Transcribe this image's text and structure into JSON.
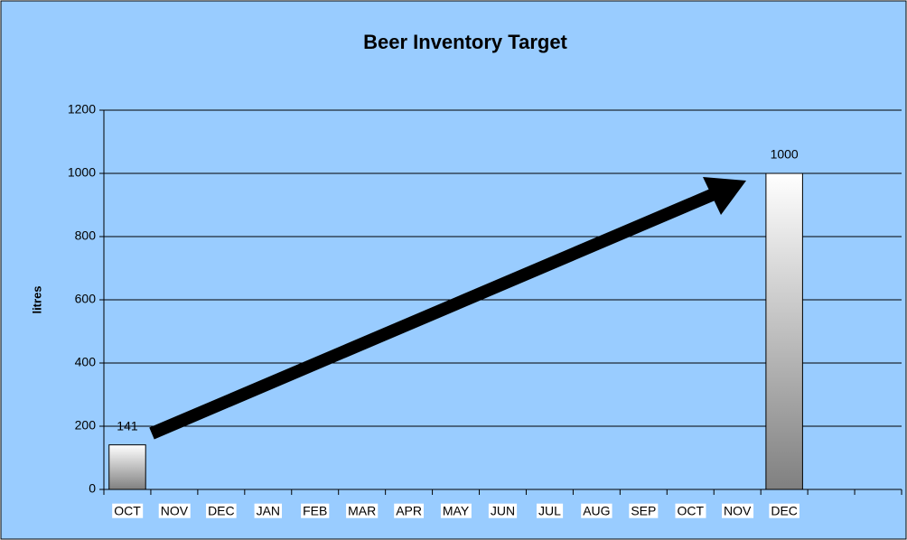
{
  "chart_data": {
    "type": "bar",
    "title": "Beer Inventory Target",
    "y_label": "litres",
    "categories": [
      "OCT",
      "NOV",
      "DEC",
      "JAN",
      "FEB",
      "MAR",
      "APR",
      "MAY",
      "JUN",
      "JUL",
      "AUG",
      "SEP",
      "OCT",
      "NOV",
      "DEC",
      null,
      null
    ],
    "values": [
      141,
      null,
      null,
      null,
      null,
      null,
      null,
      null,
      null,
      null,
      null,
      null,
      null,
      null,
      1000,
      null,
      null
    ],
    "ylim": [
      0,
      1200
    ],
    "yticks": [
      0,
      200,
      400,
      600,
      800,
      1000,
      1200
    ],
    "grid": true,
    "color": "#888888",
    "background": "#99ccff"
  }
}
